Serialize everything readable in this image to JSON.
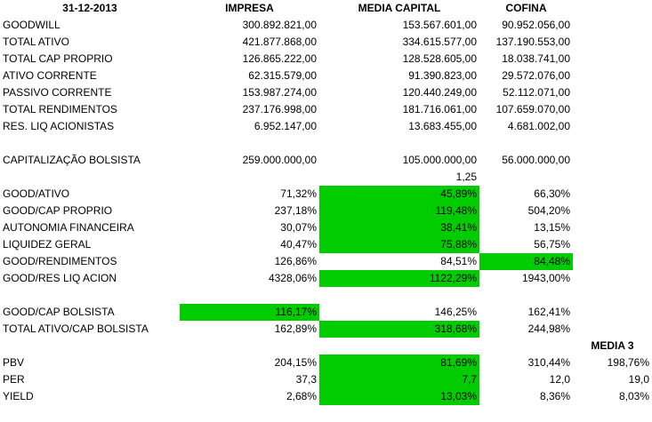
{
  "sheet": {
    "header": {
      "date": "31-12-2013",
      "col1": "IMPRESA",
      "col2": "MEDIA CAPITAL",
      "col3": "COFINA",
      "col4": "MEDIA 3"
    },
    "rows": [
      {
        "label": "GOODWILL",
        "v1": "300.892.821,00",
        "v2": "153.567.601,00",
        "v3": "90.952.056,00"
      },
      {
        "label": "TOTAL ATIVO",
        "v1": "421.877.868,00",
        "v2": "334.615.577,00",
        "v3": "137.190.553,00"
      },
      {
        "label": "TOTAL CAP PROPRIO",
        "v1": "126.865.222,00",
        "v2": "128.528.605,00",
        "v3": "18.038.741,00"
      },
      {
        "label": "ATIVO CORRENTE",
        "v1": "62.315.579,00",
        "v2": "91.390.823,00",
        "v3": "29.572.076,00"
      },
      {
        "label": "PASSIVO CORRENTE",
        "v1": "153.987.274,00",
        "v2": "120.440.249,00",
        "v3": "52.112.071,00"
      },
      {
        "label": "TOTAL RENDIMENTOS",
        "v1": "237.176.998,00",
        "v2": "181.716.061,00",
        "v3": "107.659.070,00"
      },
      {
        "label": "RES. LIQ ACIONISTAS",
        "v1": "6.952.147,00",
        "v2": "13.683.455,00",
        "v3": "4.681.002,00"
      },
      {
        "label": "",
        "v1": "",
        "v2": "",
        "v3": ""
      },
      {
        "label": "CAPITALIZAÇÃO BOLSISTA",
        "v1": "259.000.000,00",
        "v2": "105.000.000,00",
        "v3": "56.000.000,00"
      },
      {
        "label": "",
        "v1": "",
        "v2": "1,25",
        "v3": ""
      },
      {
        "label": "GOOD/ATIVO",
        "v1": "71,32%",
        "v2": "45,89%",
        "v3": "66,30%"
      },
      {
        "label": "GOOD/CAP PROPRIO",
        "v1": "237,18%",
        "v2": "119,48%",
        "v3": "504,20%"
      },
      {
        "label": "AUTONOMIA FINANCEIRA",
        "v1": "30,07%",
        "v2": "38,41%",
        "v3": "13,15%"
      },
      {
        "label": "LIQUIDEZ GERAL",
        "v1": "40,47%",
        "v2": "75,88%",
        "v3": "56,75%"
      },
      {
        "label": "GOOD/RENDIMENTOS",
        "v1": "126,86%",
        "v2": "84,51%",
        "v3": "84,48%"
      },
      {
        "label": "GOOD/RES LIQ ACION",
        "v1": "4328,06%",
        "v2": "1122,29%",
        "v3": "1943,00%"
      },
      {
        "label": "",
        "v1": "",
        "v2": "",
        "v3": ""
      },
      {
        "label": "GOOD/CAP BOLSISTA",
        "v1": "116,17%",
        "v2": "146,25%",
        "v3": "162,41%"
      },
      {
        "label": "TOTAL ATIVO/CAP BOLSISTA",
        "v1": "162,89%",
        "v2": "318,68%",
        "v3": "244,98%"
      },
      {
        "label": "",
        "v1": "",
        "v2": "",
        "v3": "",
        "v4": ""
      },
      {
        "label": "PBV",
        "v1": "204,15%",
        "v2": "81,69%",
        "v3": "310,44%",
        "v4": "198,76%"
      },
      {
        "label": "PER",
        "v1": "37,3",
        "v2": "7,7",
        "v3": "12,0",
        "v4": "19,0"
      },
      {
        "label": "YIELD",
        "v1": "2,68%",
        "v2": "13,03%",
        "v3": "8,36%",
        "v4": "8,03%"
      }
    ],
    "highlight_color": "#00cc00"
  }
}
